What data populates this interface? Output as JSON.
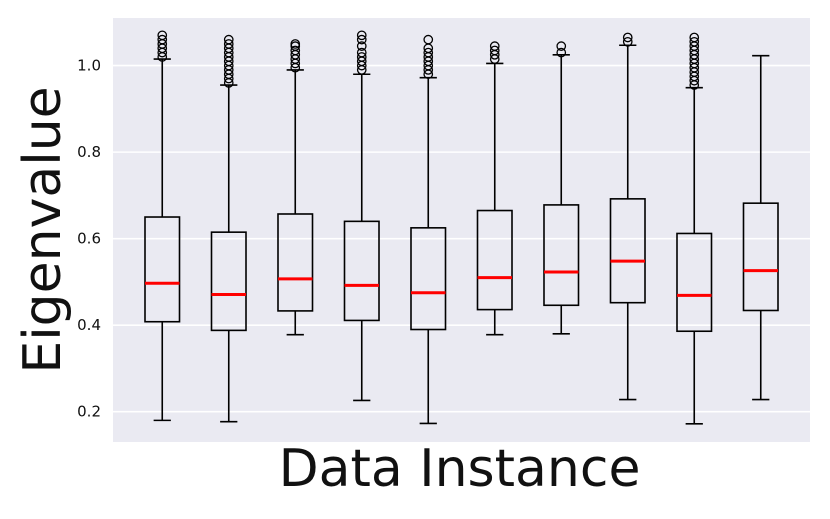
{
  "chart_data": {
    "type": "box",
    "title": "",
    "xlabel": "Data Instance",
    "ylabel": "Eigenvalue",
    "ylim": [
      0.13,
      1.11
    ],
    "yticks": [
      0.2,
      0.4,
      0.6,
      0.8,
      1.0
    ],
    "ytick_labels": [
      "0.2",
      "0.4",
      "0.6",
      "0.8",
      "1.0"
    ],
    "grid": true,
    "legend": "none",
    "colors": {
      "plot_background": "#EAEAF2",
      "grid": "#FFFFFF",
      "box_edge": "#000000",
      "median": "#FF0000",
      "outlier_edge": "#000000"
    },
    "boxes": [
      {
        "whisker_low": 0.18,
        "q1": 0.408,
        "median": 0.497,
        "q3": 0.65,
        "whisker_high": 1.015,
        "fliers": [
          1.02,
          1.03,
          1.04,
          1.05,
          1.06,
          1.07
        ]
      },
      {
        "whisker_low": 0.177,
        "q1": 0.388,
        "median": 0.471,
        "q3": 0.615,
        "whisker_high": 0.955,
        "fliers": [
          0.96,
          0.97,
          0.98,
          0.99,
          1.0,
          1.01,
          1.02,
          1.03,
          1.04,
          1.05,
          1.06
        ]
      },
      {
        "whisker_low": 0.378,
        "q1": 0.433,
        "median": 0.507,
        "q3": 0.657,
        "whisker_high": 0.99,
        "fliers": [
          0.995,
          1.005,
          1.015,
          1.025,
          1.035,
          1.045,
          1.05
        ]
      },
      {
        "whisker_low": 0.226,
        "q1": 0.411,
        "median": 0.492,
        "q3": 0.64,
        "whisker_high": 0.98,
        "fliers": [
          0.99,
          1.0,
          1.01,
          1.02,
          1.03,
          1.045,
          1.06,
          1.07
        ]
      },
      {
        "whisker_low": 0.173,
        "q1": 0.39,
        "median": 0.475,
        "q3": 0.625,
        "whisker_high": 0.972,
        "fliers": [
          0.98,
          0.99,
          1.0,
          1.01,
          1.02,
          1.03,
          1.04,
          1.06
        ]
      },
      {
        "whisker_low": 0.378,
        "q1": 0.436,
        "median": 0.51,
        "q3": 0.665,
        "whisker_high": 1.005,
        "fliers": [
          1.015,
          1.025,
          1.035,
          1.045
        ]
      },
      {
        "whisker_low": 0.38,
        "q1": 0.446,
        "median": 0.523,
        "q3": 0.678,
        "whisker_high": 1.025,
        "fliers": [
          1.03,
          1.045
        ]
      },
      {
        "whisker_low": 0.228,
        "q1": 0.452,
        "median": 0.548,
        "q3": 0.692,
        "whisker_high": 1.047,
        "fliers": [
          1.055,
          1.065
        ]
      },
      {
        "whisker_low": 0.172,
        "q1": 0.386,
        "median": 0.469,
        "q3": 0.612,
        "whisker_high": 0.949,
        "fliers": [
          0.955,
          0.965,
          0.975,
          0.985,
          0.995,
          1.005,
          1.015,
          1.025,
          1.035,
          1.045,
          1.055,
          1.065
        ]
      },
      {
        "whisker_low": 0.228,
        "q1": 0.434,
        "median": 0.526,
        "q3": 0.682,
        "whisker_high": 1.023,
        "fliers": []
      }
    ]
  }
}
